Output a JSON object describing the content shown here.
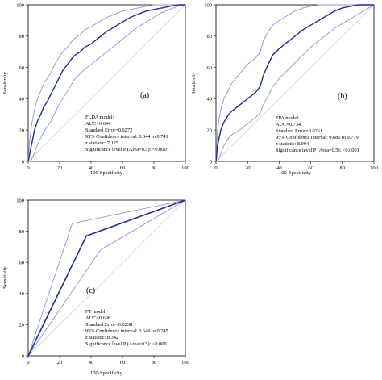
{
  "chart_data": [
    {
      "type": "line",
      "panel_label": "(a)",
      "xlabel": "100-Specificity",
      "ylabel": "Sensitivity",
      "xlim": [
        0,
        100
      ],
      "ylim": [
        0,
        100
      ],
      "xticks": [
        "0",
        "20",
        "40",
        "60",
        "80",
        "100"
      ],
      "yticks": [
        "0",
        "20",
        "40",
        "60",
        "80",
        "100"
      ],
      "grid": false,
      "stats": [
        "FLDA model:",
        "AUC=0.694",
        "Standard Error=0.0272",
        "95% Confidence interval: 0.644 to 0.741",
        "z statistic: 7.125",
        "Significance level P (Area=0.5): <0.0001"
      ],
      "series": [
        {
          "role": "roc",
          "x": [
            0,
            1,
            2,
            3,
            4,
            5,
            6,
            8,
            10,
            12,
            14,
            16,
            18,
            20,
            22,
            25,
            28,
            30,
            33,
            36,
            40,
            45,
            50,
            55,
            60,
            65,
            70,
            75,
            80,
            85,
            90,
            95,
            100
          ],
          "y": [
            0,
            5,
            10,
            15,
            20,
            23,
            26,
            30,
            35,
            38,
            42,
            46,
            50,
            54,
            58,
            62,
            66,
            68,
            70,
            73,
            75,
            79,
            83,
            86,
            89,
            92,
            94,
            96,
            97,
            98,
            99,
            100,
            100
          ]
        },
        {
          "role": "ci_upper",
          "x": [
            0,
            1,
            2,
            3,
            4,
            5,
            6,
            8,
            10,
            12,
            14,
            16,
            18,
            20,
            22,
            25,
            28,
            30,
            33,
            36,
            40,
            45,
            50,
            55,
            60,
            65,
            70,
            75,
            80,
            85,
            90,
            95,
            100
          ],
          "y": [
            0,
            14,
            22,
            28,
            33,
            37,
            40,
            45,
            50,
            53,
            56,
            60,
            64,
            67,
            70,
            73,
            77,
            79,
            81,
            84,
            86,
            89,
            92,
            94,
            96,
            97,
            98,
            99,
            100,
            100,
            100,
            100,
            100
          ]
        },
        {
          "role": "ci_lower",
          "x": [
            0,
            1,
            2,
            3,
            4,
            5,
            6,
            8,
            10,
            12,
            14,
            16,
            18,
            20,
            22,
            25,
            28,
            30,
            33,
            36,
            40,
            45,
            50,
            55,
            60,
            65,
            70,
            75,
            80,
            85,
            90,
            95,
            100
          ],
          "y": [
            0,
            0,
            1,
            3,
            6,
            8,
            11,
            15,
            19,
            22,
            25,
            29,
            33,
            37,
            40,
            45,
            50,
            53,
            56,
            59,
            62,
            66,
            70,
            74,
            78,
            82,
            86,
            89,
            92,
            95,
            97,
            99,
            100
          ]
        }
      ]
    },
    {
      "type": "line",
      "panel_label": "(b)",
      "xlabel": "100-Specificity",
      "ylabel": "Sensitivity",
      "xlim": [
        0,
        100
      ],
      "ylim": [
        0,
        100
      ],
      "xticks": [
        "0",
        "20",
        "40",
        "60",
        "80",
        "100"
      ],
      "yticks": [
        "0",
        "20",
        "40",
        "60",
        "80",
        "100"
      ],
      "grid": false,
      "stats": [
        "FPA model:",
        "AUC=0.734",
        "Standard Error=0.0261",
        "95% Confidence interval: 0.686 to 0.779",
        "z statistic: 8.994",
        "Significance level P (Area=0.5): <0.0001"
      ],
      "series": [
        {
          "role": "roc",
          "x": [
            0,
            1,
            2,
            3,
            5,
            8,
            10,
            15,
            20,
            25,
            28,
            30,
            33,
            36,
            40,
            45,
            50,
            55,
            60,
            65,
            70,
            75,
            80,
            85,
            90,
            95,
            100
          ],
          "y": [
            0,
            10,
            15,
            20,
            25,
            30,
            32,
            36,
            40,
            44,
            48,
            55,
            62,
            68,
            72,
            76,
            80,
            84,
            87,
            90,
            93,
            96,
            98,
            99,
            100,
            100,
            100
          ]
        },
        {
          "role": "ci_upper",
          "x": [
            0,
            1,
            2,
            3,
            5,
            8,
            10,
            15,
            20,
            25,
            28,
            30,
            33,
            36,
            40,
            45,
            50,
            55,
            60,
            65,
            70,
            75,
            80,
            85,
            90,
            95,
            100
          ],
          "y": [
            0,
            20,
            27,
            33,
            40,
            46,
            50,
            56,
            62,
            66,
            70,
            77,
            83,
            87,
            90,
            93,
            96,
            98,
            99,
            100,
            100,
            100,
            100,
            100,
            100,
            100,
            100
          ]
        },
        {
          "role": "ci_lower",
          "x": [
            0,
            1,
            2,
            3,
            5,
            8,
            10,
            15,
            20,
            25,
            28,
            30,
            33,
            36,
            40,
            45,
            50,
            55,
            60,
            65,
            70,
            75,
            80,
            85,
            90,
            95,
            100
          ],
          "y": [
            0,
            0,
            2,
            5,
            10,
            15,
            17,
            20,
            24,
            28,
            31,
            36,
            42,
            48,
            53,
            58,
            63,
            68,
            73,
            77,
            81,
            85,
            88,
            91,
            94,
            97,
            100
          ]
        }
      ]
    },
    {
      "type": "line",
      "panel_label": "(c)",
      "xlabel": "100-Specificity",
      "ylabel": "Sensitivity",
      "xlim": [
        0,
        100
      ],
      "ylim": [
        0,
        100
      ],
      "xticks": [
        "0",
        "20",
        "40",
        "60",
        "80",
        "100"
      ],
      "yticks": [
        "0",
        "20",
        "40",
        "60",
        "80",
        "100"
      ],
      "grid": false,
      "stats": [
        "FT model:",
        "AUC=0.698",
        "Standard Error=0.0238",
        "95% Confidence interval: 0.649 to 0.745",
        "z statistic: 8.342",
        "Significance level P (Area=0.5): <0.0001"
      ],
      "series": [
        {
          "role": "roc",
          "x": [
            0,
            37,
            100
          ],
          "y": [
            0,
            77,
            100
          ]
        },
        {
          "role": "ci_upper",
          "x": [
            0,
            28,
            100
          ],
          "y": [
            0,
            85,
            100
          ]
        },
        {
          "role": "ci_lower",
          "x": [
            0,
            46,
            100
          ],
          "y": [
            0,
            68,
            100
          ]
        }
      ]
    }
  ],
  "colors": {
    "roc": "#1f2f8c",
    "ci": "#8f93d8",
    "diagonal": "#c9cbe6",
    "axis": "#000000"
  }
}
